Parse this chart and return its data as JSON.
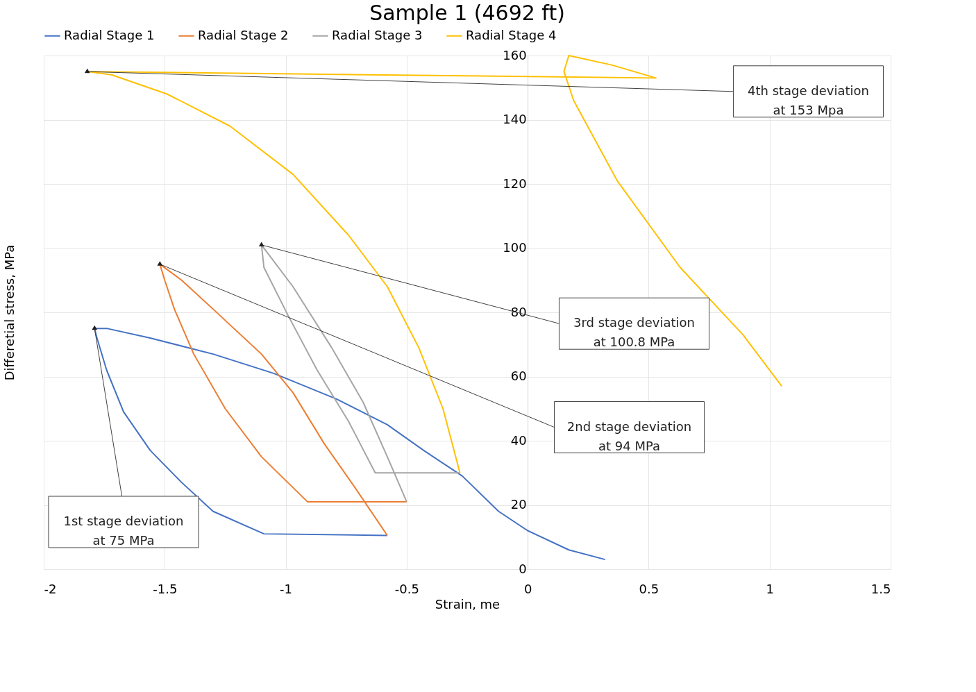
{
  "chart_data": {
    "type": "line",
    "title": "Sample 1 (4692 ft)",
    "xlabel": "Strain, me",
    "ylabel": "Differetial stress, MPa",
    "xlim": [
      -2,
      1.5
    ],
    "xticks": [
      -2,
      -1.5,
      -1,
      -0.5,
      0,
      0.5,
      1,
      1.5
    ],
    "ylim": [
      0,
      160
    ],
    "yticks": [
      0,
      20,
      40,
      60,
      80,
      100,
      120,
      140,
      160
    ],
    "grid": true,
    "legend": "top",
    "line_style": "solid",
    "marker": "none",
    "series": [
      {
        "name": "Radial Stage 1",
        "color": "#4472c4",
        "x": [
          0.32,
          0.17,
          0,
          -0.12,
          -0.27,
          -0.43,
          -0.58,
          -0.79,
          -1.05,
          -1.3,
          -1.56,
          -1.74,
          -1.79,
          -1.78,
          -1.74,
          -1.67,
          -1.56,
          -1.43,
          -1.3,
          -1.09,
          -0.58
        ],
        "values": [
          3,
          6,
          12,
          18,
          29,
          37,
          45,
          53,
          61,
          67,
          72,
          75,
          75,
          72,
          62,
          49,
          37,
          27,
          18,
          11,
          10.5
        ]
      },
      {
        "name": "Radial Stage 2",
        "color": "#ed7d31",
        "x": [
          -0.58,
          -0.71,
          -0.84,
          -0.97,
          -1.1,
          -1.3,
          -1.43,
          -1.52,
          -1.5,
          -1.46,
          -1.38,
          -1.25,
          -1.1,
          -0.91,
          -0.5
        ],
        "values": [
          10.5,
          25,
          39,
          55,
          67,
          81,
          90,
          95,
          90,
          81,
          67,
          50,
          35,
          21,
          21
        ]
      },
      {
        "name": "Radial Stage 3",
        "color": "#a5a5a5",
        "x": [
          -0.5,
          -0.58,
          -0.68,
          -0.81,
          -0.97,
          -1.1,
          -1.09,
          -0.99,
          -0.87,
          -0.74,
          -0.63,
          -0.28
        ],
        "values": [
          21,
          35,
          52,
          69,
          88,
          101,
          94,
          79,
          62,
          46,
          30,
          30
        ]
      },
      {
        "name": "Radial Stage 4",
        "color": "#ffc000",
        "x": [
          -0.28,
          -0.35,
          -0.45,
          -0.58,
          -0.74,
          -0.97,
          -1.23,
          -1.49,
          -1.72,
          -1.82,
          0.53,
          0.35,
          0.17,
          0.15,
          0.19,
          0.37,
          0.63,
          0.89,
          1.05
        ],
        "values": [
          30,
          50,
          69,
          88,
          104,
          123,
          138,
          148,
          154,
          155,
          153,
          157,
          160,
          155,
          146,
          121,
          94,
          73,
          57
        ]
      }
    ],
    "annotations": [
      {
        "text": "4th stage deviation\nat 153 Mpa",
        "x": -1.82,
        "y": 155
      },
      {
        "text": "3rd stage deviation\nat 100.8 MPa",
        "x": -1.1,
        "y": 101
      },
      {
        "text": "2nd stage deviation\nat 94 MPa",
        "x": -1.52,
        "y": 95
      },
      {
        "text": "1st stage deviation\nat 75 MPa",
        "x": -1.79,
        "y": 75
      }
    ]
  }
}
